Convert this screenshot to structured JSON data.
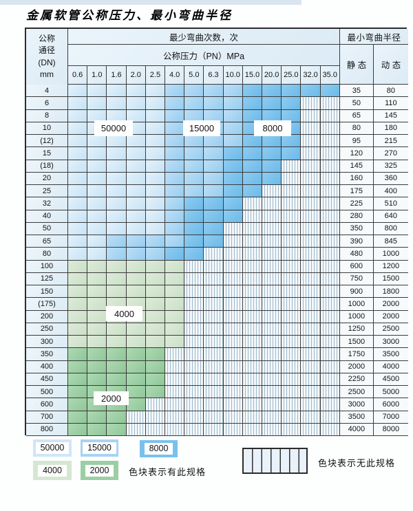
{
  "title": "金属软管公称压力、最小弯曲半径",
  "colors": {
    "cycles_50000_light_blue": "#cfe6f6",
    "cycles_15000_medium_blue": "#a6d4f1",
    "cycles_8000_dark_blue": "#79c1ec",
    "cycles_4000_light_green": "#d5e7d1",
    "cycles_2000_medium_green": "#9bcfa3",
    "no_spec_stripe_line": "#9db6c8",
    "grid_line": "#3a3a3a"
  },
  "table": {
    "header": {
      "dn_label_lines": [
        "公称",
        "通径",
        "(DN)",
        "mm"
      ],
      "bend_cycles_label": "最少弯曲次数，次",
      "pressure_label": "公称压力（PN）MPa",
      "radius_label": "最小弯曲半径",
      "static_label": "静 态",
      "dynamic_label": "动 态",
      "pressures": [
        "0.6",
        "1.0",
        "1.6",
        "2.0",
        "2.5",
        "4.0",
        "5.0",
        "6.3",
        "10.0",
        "15.0",
        "20.0",
        "25.0",
        "32.0",
        "35.0"
      ]
    },
    "cell_codes_legend": "L=50000次 M=15000次 D=8000次 G4=4000次 G2=2000次 X=无此规格",
    "rows": [
      {
        "dn": "4",
        "cells": [
          "L",
          "L",
          "L",
          "L",
          "L",
          "M",
          "M",
          "M",
          "M",
          "D",
          "D",
          "D",
          "D",
          "D"
        ],
        "static": "35",
        "dynamic": "80"
      },
      {
        "dn": "6",
        "cells": [
          "L",
          "L",
          "L",
          "L",
          "L",
          "M",
          "M",
          "M",
          "M",
          "D",
          "D",
          "D",
          "X",
          "X"
        ],
        "static": "50",
        "dynamic": "110"
      },
      {
        "dn": "8",
        "cells": [
          "L",
          "L",
          "L",
          "L",
          "L",
          "M",
          "M",
          "M",
          "M",
          "D",
          "D",
          "D",
          "X",
          "X"
        ],
        "static": "65",
        "dynamic": "145"
      },
      {
        "dn": "10",
        "cells": [
          "L",
          "L",
          "L",
          "L",
          "L",
          "M",
          "M",
          "M",
          "M",
          "D",
          "D",
          "D",
          "X",
          "X"
        ],
        "static": "80",
        "dynamic": "180"
      },
      {
        "dn": "(12)",
        "cells": [
          "L",
          "L",
          "L",
          "L",
          "L",
          "M",
          "M",
          "M",
          "M",
          "D",
          "D",
          "D",
          "X",
          "X"
        ],
        "static": "95",
        "dynamic": "215"
      },
      {
        "dn": "15",
        "cells": [
          "L",
          "L",
          "L",
          "L",
          "L",
          "M",
          "M",
          "M",
          "D",
          "D",
          "D",
          "D",
          "X",
          "X"
        ],
        "static": "120",
        "dynamic": "270"
      },
      {
        "dn": "(18)",
        "cells": [
          "L",
          "L",
          "L",
          "L",
          "L",
          "M",
          "M",
          "M",
          "D",
          "D",
          "D",
          "X",
          "X",
          "X"
        ],
        "static": "145",
        "dynamic": "325"
      },
      {
        "dn": "20",
        "cells": [
          "L",
          "L",
          "L",
          "L",
          "L",
          "M",
          "M",
          "M",
          "D",
          "D",
          "D",
          "X",
          "X",
          "X"
        ],
        "static": "160",
        "dynamic": "360"
      },
      {
        "dn": "25",
        "cells": [
          "L",
          "L",
          "L",
          "L",
          "L",
          "M",
          "M",
          "M",
          "D",
          "D",
          "X",
          "X",
          "X",
          "X"
        ],
        "static": "175",
        "dynamic": "400"
      },
      {
        "dn": "32",
        "cells": [
          "L",
          "L",
          "L",
          "L",
          "L",
          "M",
          "D",
          "D",
          "D",
          "X",
          "X",
          "X",
          "X",
          "X"
        ],
        "static": "225",
        "dynamic": "510"
      },
      {
        "dn": "40",
        "cells": [
          "L",
          "L",
          "L",
          "L",
          "L",
          "M",
          "D",
          "D",
          "D",
          "X",
          "X",
          "X",
          "X",
          "X"
        ],
        "static": "280",
        "dynamic": "640"
      },
      {
        "dn": "50",
        "cells": [
          "L",
          "L",
          "L",
          "L",
          "L",
          "M",
          "D",
          "D",
          "X",
          "X",
          "X",
          "X",
          "X",
          "X"
        ],
        "static": "350",
        "dynamic": "800"
      },
      {
        "dn": "65",
        "cells": [
          "L",
          "L",
          "M",
          "M",
          "M",
          "M",
          "D",
          "D",
          "X",
          "X",
          "X",
          "X",
          "X",
          "X"
        ],
        "static": "390",
        "dynamic": "845"
      },
      {
        "dn": "80",
        "cells": [
          "L",
          "L",
          "M",
          "M",
          "M",
          "D",
          "D",
          "X",
          "X",
          "X",
          "X",
          "X",
          "X",
          "X"
        ],
        "static": "480",
        "dynamic": "1000"
      },
      {
        "dn": "100",
        "cells": [
          "G4",
          "G4",
          "G4",
          "G4",
          "G4",
          "G4",
          "X",
          "X",
          "X",
          "X",
          "X",
          "X",
          "X",
          "X"
        ],
        "static": "600",
        "dynamic": "1200"
      },
      {
        "dn": "125",
        "cells": [
          "G4",
          "G4",
          "G4",
          "G4",
          "G4",
          "G4",
          "X",
          "X",
          "X",
          "X",
          "X",
          "X",
          "X",
          "X"
        ],
        "static": "750",
        "dynamic": "1500"
      },
      {
        "dn": "150",
        "cells": [
          "G4",
          "G4",
          "G4",
          "G4",
          "G4",
          "G4",
          "X",
          "X",
          "X",
          "X",
          "X",
          "X",
          "X",
          "X"
        ],
        "static": "900",
        "dynamic": "1800"
      },
      {
        "dn": "(175)",
        "cells": [
          "G4",
          "G4",
          "G4",
          "G4",
          "G4",
          "G4",
          "X",
          "X",
          "X",
          "X",
          "X",
          "X",
          "X",
          "X"
        ],
        "static": "1000",
        "dynamic": "2000"
      },
      {
        "dn": "200",
        "cells": [
          "G4",
          "G4",
          "G4",
          "G4",
          "G4",
          "G4",
          "X",
          "X",
          "X",
          "X",
          "X",
          "X",
          "X",
          "X"
        ],
        "static": "1000",
        "dynamic": "2000"
      },
      {
        "dn": "250",
        "cells": [
          "G4",
          "G4",
          "G4",
          "G4",
          "G4",
          "G4",
          "X",
          "X",
          "X",
          "X",
          "X",
          "X",
          "X",
          "X"
        ],
        "static": "1250",
        "dynamic": "2500"
      },
      {
        "dn": "300",
        "cells": [
          "G4",
          "G4",
          "G4",
          "G4",
          "G4",
          "G4",
          "X",
          "X",
          "X",
          "X",
          "X",
          "X",
          "X",
          "X"
        ],
        "static": "1500",
        "dynamic": "3000"
      },
      {
        "dn": "350",
        "cells": [
          "G2",
          "G2",
          "G2",
          "G2",
          "G2",
          "X",
          "X",
          "X",
          "X",
          "X",
          "X",
          "X",
          "X",
          "X"
        ],
        "static": "1750",
        "dynamic": "3500"
      },
      {
        "dn": "400",
        "cells": [
          "G2",
          "G2",
          "G2",
          "G2",
          "G2",
          "X",
          "X",
          "X",
          "X",
          "X",
          "X",
          "X",
          "X",
          "X"
        ],
        "static": "2000",
        "dynamic": "4000"
      },
      {
        "dn": "450",
        "cells": [
          "G2",
          "G2",
          "G2",
          "G2",
          "G2",
          "X",
          "X",
          "X",
          "X",
          "X",
          "X",
          "X",
          "X",
          "X"
        ],
        "static": "2250",
        "dynamic": "4500"
      },
      {
        "dn": "500",
        "cells": [
          "G2",
          "G2",
          "G2",
          "G2",
          "G2",
          "X",
          "X",
          "X",
          "X",
          "X",
          "X",
          "X",
          "X",
          "X"
        ],
        "static": "2500",
        "dynamic": "5000"
      },
      {
        "dn": "600",
        "cells": [
          "G2",
          "G2",
          "G2",
          "G2",
          "X",
          "X",
          "X",
          "X",
          "X",
          "X",
          "X",
          "X",
          "X",
          "X"
        ],
        "static": "3000",
        "dynamic": "6000"
      },
      {
        "dn": "700",
        "cells": [
          "G2",
          "G2",
          "G2",
          "X",
          "X",
          "X",
          "X",
          "X",
          "X",
          "X",
          "X",
          "X",
          "X",
          "X"
        ],
        "static": "3500",
        "dynamic": "7000"
      },
      {
        "dn": "800",
        "cells": [
          "G2",
          "G2",
          "G2",
          "X",
          "X",
          "X",
          "X",
          "X",
          "X",
          "X",
          "X",
          "X",
          "X",
          "X"
        ],
        "static": "4000",
        "dynamic": "8000"
      }
    ],
    "overlay_labels": {
      "v50000": "50000",
      "v15000": "15000",
      "v8000": "8000",
      "v4000": "4000",
      "v2000": "2000"
    }
  },
  "legend": {
    "items": [
      {
        "value": "50000",
        "color_key": "light_blue"
      },
      {
        "value": "15000",
        "color_key": "medium_blue"
      },
      {
        "value": "8000",
        "color_key": "dark_blue"
      },
      {
        "value": "4000",
        "color_key": "light_green"
      },
      {
        "value": "2000",
        "color_key": "medium_green"
      }
    ],
    "has_spec_text": "色块表示有此规格",
    "no_spec_text": "色块表示无此规格"
  }
}
